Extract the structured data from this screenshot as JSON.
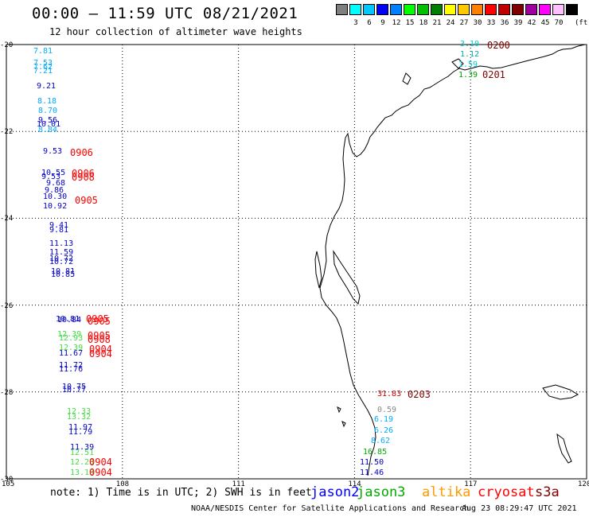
{
  "title": "00:00 – 11:59 UTC 08/21/2021",
  "subtitle": "12 hour collection of altimeter wave heights",
  "legend": {
    "unit": "(ft)",
    "entries": [
      {
        "label": "",
        "color": "#7f7f7f"
      },
      {
        "label": "3",
        "color": "#00ffff"
      },
      {
        "label": "6",
        "color": "#00c8ff"
      },
      {
        "label": "9",
        "color": "#0000ff"
      },
      {
        "label": "12",
        "color": "#0080ff"
      },
      {
        "label": "15",
        "color": "#00ff00"
      },
      {
        "label": "18",
        "color": "#00c000"
      },
      {
        "label": "21",
        "color": "#008000"
      },
      {
        "label": "24",
        "color": "#ffff00"
      },
      {
        "label": "27",
        "color": "#ffc800"
      },
      {
        "label": "30",
        "color": "#ff8000"
      },
      {
        "label": "33",
        "color": "#ff0000"
      },
      {
        "label": "36",
        "color": "#c00000"
      },
      {
        "label": "39",
        "color": "#800000"
      },
      {
        "label": "42",
        "color": "#a000a0"
      },
      {
        "label": "45",
        "color": "#ff00ff"
      },
      {
        "label": "70",
        "color": "#ffc0ff"
      },
      {
        "label": "",
        "color": "#000000"
      }
    ]
  },
  "axes": {
    "lon_labels": [
      "105",
      "108",
      "111",
      "114",
      "117",
      "120"
    ],
    "lat_labels": [
      "-20",
      "-22",
      "-24",
      "-26",
      "-28",
      "-30"
    ]
  },
  "observations": [
    {
      "v": "7.81",
      "c": "#00aaff"
    },
    {
      "v": "7.53",
      "c": "#00aaff"
    },
    {
      "v": "7.62",
      "c": "#00aaff"
    },
    {
      "v": "7.21",
      "c": "#00aaff"
    },
    {
      "v": "9.21",
      "c": "#0000cc"
    },
    {
      "v": "8.18",
      "c": "#00aaff"
    },
    {
      "v": "8.70",
      "c": "#00aaff"
    },
    {
      "v": "9.56",
      "c": "#0000cc"
    },
    {
      "v": "10.01",
      "c": "#0000cc"
    },
    {
      "v": "8.84",
      "c": "#00aaff"
    },
    {
      "v": "9.53",
      "c": "#0000cc"
    },
    {
      "v": "10.55",
      "c": "#0000cc"
    },
    {
      "v": "9.53",
      "c": "#0000cc"
    },
    {
      "v": "9.68",
      "c": "#0000cc"
    },
    {
      "v": "9.86",
      "c": "#0000cc"
    },
    {
      "v": "10.30",
      "c": "#0000cc"
    },
    {
      "v": "10.92",
      "c": "#0000cc"
    },
    {
      "v": "9.41",
      "c": "#0000cc"
    },
    {
      "v": "9.81",
      "c": "#0000cc"
    },
    {
      "v": "11.13",
      "c": "#0000cc"
    },
    {
      "v": "11.59",
      "c": "#0000cc"
    },
    {
      "v": "10.72",
      "c": "#0000cc"
    },
    {
      "v": "10.72",
      "c": "#0000cc"
    },
    {
      "v": "10.81",
      "c": "#0000cc"
    },
    {
      "v": "10.85",
      "c": "#0000cc"
    },
    {
      "v": "10.81",
      "c": "#0000cc"
    },
    {
      "v": "10.84",
      "c": "#0000cc"
    },
    {
      "v": "12.39",
      "c": "#44dd44"
    },
    {
      "v": "12.93",
      "c": "#44dd44"
    },
    {
      "v": "12.39",
      "c": "#44dd44"
    },
    {
      "v": "11.67",
      "c": "#0000cc"
    },
    {
      "v": "11.72",
      "c": "#0000cc"
    },
    {
      "v": "11.76",
      "c": "#0000cc"
    },
    {
      "v": "10.75",
      "c": "#0000cc"
    },
    {
      "v": "10.77",
      "c": "#0000cc"
    },
    {
      "v": "12.33",
      "c": "#44dd44"
    },
    {
      "v": "13.32",
      "c": "#44dd44"
    },
    {
      "v": "11.97",
      "c": "#0000cc"
    },
    {
      "v": "11.79",
      "c": "#0000cc"
    },
    {
      "v": "11.39",
      "c": "#0000cc"
    },
    {
      "v": "12.51",
      "c": "#44dd44"
    },
    {
      "v": "12.23",
      "c": "#44dd44"
    },
    {
      "v": "13.19",
      "c": "#44dd44"
    },
    {
      "v": "3.10",
      "c": "#00cccc"
    },
    {
      "v": "1.12",
      "c": "#00aaaa"
    },
    {
      "v": "1.59",
      "c": "#00cccc"
    },
    {
      "v": "1.39",
      "c": "#009900"
    },
    {
      "v": "31.83",
      "c": "#cc0000"
    },
    {
      "v": "0.59",
      "c": "#888888"
    },
    {
      "v": "6.19",
      "c": "#00aaff"
    },
    {
      "v": "6.26",
      "c": "#00aaff"
    },
    {
      "v": "8.62",
      "c": "#00aaff"
    },
    {
      "v": "16.85",
      "c": "#00aa00"
    },
    {
      "v": "11.50",
      "c": "#0000cc"
    },
    {
      "v": "11.46",
      "c": "#0000cc"
    }
  ],
  "times": [
    {
      "v": "0906",
      "c": "#ff0000"
    },
    {
      "v": "0906",
      "c": "#ff0000"
    },
    {
      "v": "0908",
      "c": "#ff0000"
    },
    {
      "v": "0905",
      "c": "#ff0000"
    },
    {
      "v": "0905",
      "c": "#ff0000"
    },
    {
      "v": "0905",
      "c": "#ff0000"
    },
    {
      "v": "0905",
      "c": "#ff0000"
    },
    {
      "v": "0908",
      "c": "#ff0000"
    },
    {
      "v": "0904",
      "c": "#ff0000"
    },
    {
      "v": "0904",
      "c": "#ff0000"
    },
    {
      "v": "0904",
      "c": "#ff0000"
    },
    {
      "v": "0904",
      "c": "#ff0000"
    },
    {
      "v": "0200",
      "c": "#800000"
    },
    {
      "v": "0201",
      "c": "#800000"
    },
    {
      "v": "0203",
      "c": "#800000"
    }
  ],
  "note": "note: 1) Time is in UTC; 2) SWH is in feet",
  "satellites": [
    {
      "name": "jason2",
      "color": "#0000ff"
    },
    {
      "name": "jason3",
      "color": "#00aa00"
    },
    {
      "name": "altika",
      "color": "#ff9900"
    },
    {
      "name": "cryosat",
      "color": "#ff0000"
    },
    {
      "name": "s3a",
      "color": "#800000"
    }
  ],
  "credit": "NOAA/NESDIS Center for Satellite Applications and Research",
  "timestamp": "Aug 23 08:29:47 UTC 2021"
}
